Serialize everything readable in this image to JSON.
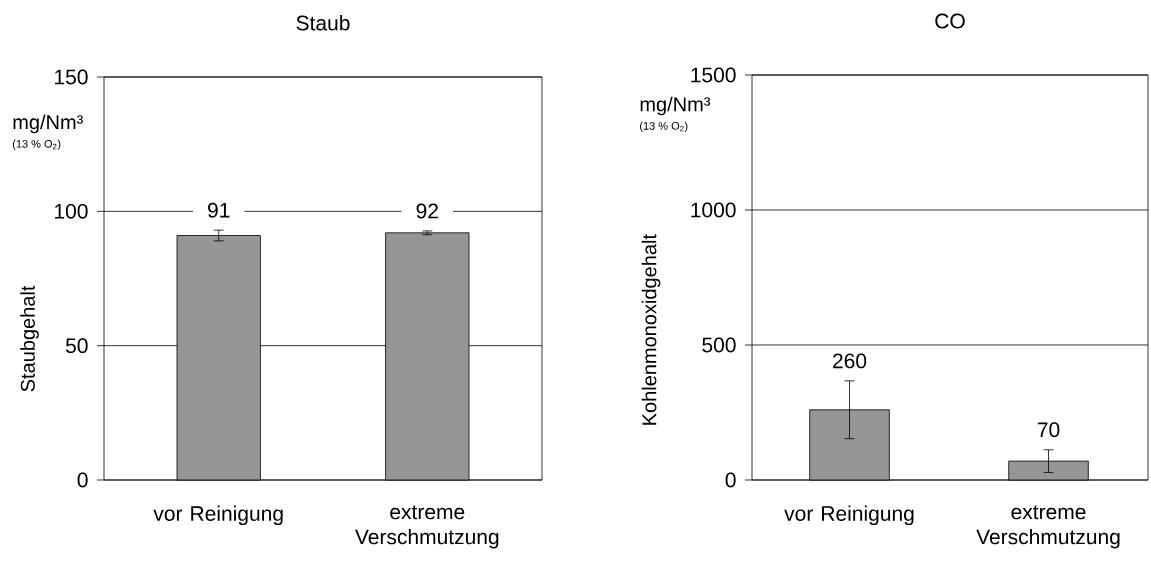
{
  "chart_data": [
    {
      "type": "bar",
      "title": "Staub",
      "ylabel": "Staubgehalt",
      "annotations": [
        "mg/Nm³",
        "(13 % O$_{2}$)"
      ],
      "categories": [
        "vor Reinigung",
        "extreme Verschmutzung"
      ],
      "values": [
        91,
        92
      ],
      "errors": [
        2,
        0.7
      ],
      "color": "#969696",
      "ylim": [
        0,
        150
      ],
      "yticks": [
        0,
        50,
        100,
        150
      ],
      "grid": "y",
      "data_labels": true
    },
    {
      "type": "bar",
      "title": "CO",
      "ylabel": "Kohlenmonoxidgehalt",
      "annotations": [
        "mg/Nm³",
        "(13 % O$_{2}$)"
      ],
      "categories": [
        "vor Reinigung",
        "extreme Verschmutzung"
      ],
      "values": [
        260,
        70
      ],
      "errors": [
        107,
        42
      ],
      "color": "#969696",
      "ylim": [
        0,
        1500
      ],
      "yticks": [
        0,
        500,
        1000,
        1500
      ],
      "grid": "y",
      "data_labels": true
    }
  ]
}
